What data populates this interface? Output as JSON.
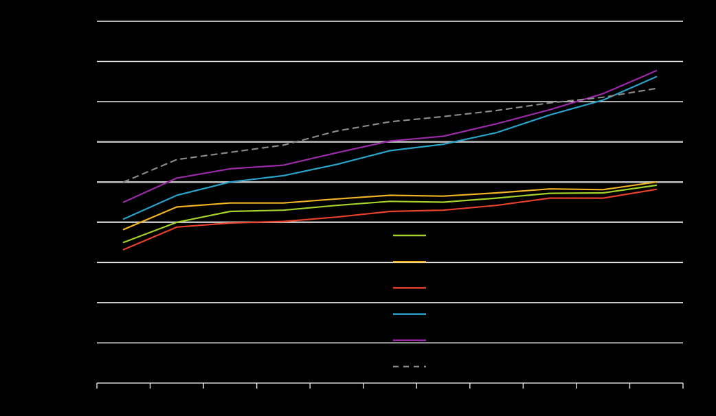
{
  "chart_data": {
    "type": "line",
    "title": "",
    "xlabel": "",
    "ylabel": "",
    "grid": true,
    "legend_position": "bottom-center",
    "x": [
      1,
      2,
      3,
      4,
      5,
      6,
      7,
      8,
      9,
      10,
      11
    ],
    "xlim": [
      0.5,
      11.5
    ],
    "ylim": [
      0,
      9
    ],
    "yticks": [
      0,
      1,
      2,
      3,
      4,
      5,
      6,
      7,
      8,
      9
    ],
    "x_tick_labels": [],
    "y_tick_labels": [],
    "series": [
      {
        "values": [
          3.5,
          4.0,
          4.27,
          4.3,
          4.42,
          4.52,
          4.5,
          4.6,
          4.72,
          4.73,
          4.92
        ],
        "color": "#a4d22a",
        "dashed": false
      },
      {
        "values": [
          3.82,
          4.38,
          4.48,
          4.48,
          4.58,
          4.67,
          4.65,
          4.73,
          4.83,
          4.81,
          5.0
        ],
        "color": "#f0b323",
        "dashed": false
      },
      {
        "values": [
          3.32,
          3.88,
          3.98,
          4.02,
          4.13,
          4.27,
          4.3,
          4.42,
          4.6,
          4.6,
          4.82
        ],
        "color": "#e8412c",
        "dashed": false
      },
      {
        "values": [
          4.08,
          4.67,
          5.0,
          5.16,
          5.44,
          5.78,
          5.94,
          6.23,
          6.67,
          7.04,
          7.62
        ],
        "color": "#2aa3c9",
        "dashed": false
      },
      {
        "values": [
          4.5,
          5.1,
          5.33,
          5.42,
          5.73,
          6.02,
          6.14,
          6.45,
          6.8,
          7.2,
          7.77
        ],
        "color": "#9b2aa8",
        "dashed": false
      },
      {
        "values": [
          5.0,
          5.56,
          5.74,
          5.92,
          6.27,
          6.5,
          6.63,
          6.78,
          6.97,
          7.11,
          7.33
        ],
        "color": "#8a8a8a",
        "dashed": true
      }
    ],
    "legend": [
      {
        "label": ""
      },
      {
        "label": ""
      },
      {
        "label": ""
      },
      {
        "label": ""
      },
      {
        "label": ""
      },
      {
        "label": ""
      }
    ]
  },
  "style": {
    "background": "#000000",
    "gridline_color": "#f2f2f2",
    "axis_color": "#d8d8d8"
  }
}
